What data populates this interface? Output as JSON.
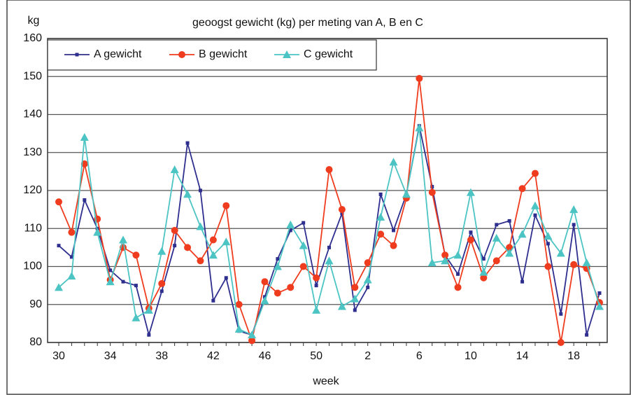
{
  "chart_data": {
    "type": "line",
    "title": "geoogst gewicht (kg) per meting van A, B en C",
    "y_label": "kg",
    "x_label": "week",
    "categories": [
      "30",
      null,
      null,
      null,
      "34",
      null,
      null,
      null,
      "38",
      null,
      null,
      null,
      "42",
      null,
      null,
      null,
      "46",
      null,
      null,
      null,
      "50",
      null,
      null,
      null,
      "2",
      null,
      null,
      null,
      "6",
      null,
      null,
      null,
      "10",
      null,
      null,
      null,
      "14",
      null,
      null,
      null,
      "18",
      null,
      null
    ],
    "series": [
      {
        "name": "A gewicht",
        "color": "#2e2e8f",
        "marker": "square",
        "values": [
          105.5,
          102.5,
          117.5,
          110,
          99,
          96,
          95,
          82,
          93.5,
          105.5,
          132.5,
          120,
          91,
          97,
          83,
          82,
          92,
          102,
          109.5,
          111.5,
          95,
          105,
          114,
          88.5,
          94.5,
          119,
          109.5,
          119,
          137,
          121,
          103,
          98,
          109,
          102,
          111,
          112,
          96,
          113.5,
          106,
          87.5,
          111,
          82,
          93
        ]
      },
      {
        "name": "B gewicht",
        "color": "#f03c1e",
        "marker": "circle",
        "values": [
          117,
          109,
          127,
          112.5,
          96.5,
          105,
          103,
          89,
          95.5,
          109.5,
          105,
          101.5,
          107,
          116,
          90,
          80.5,
          96,
          93,
          94.5,
          100,
          97,
          125.5,
          115,
          94.5,
          101,
          108.5,
          105.5,
          118,
          149.5,
          119.5,
          103,
          94.5,
          107,
          97,
          101.5,
          105,
          120.5,
          124.5,
          100,
          80,
          100.5,
          99.5,
          90.5
        ]
      },
      {
        "name": "C gewicht",
        "color": "#4cc4c4",
        "marker": "triangle",
        "values": [
          94.5,
          97.5,
          134,
          109,
          96,
          107,
          86.5,
          88.5,
          104,
          125.5,
          119,
          110.5,
          103,
          106.5,
          83.5,
          82,
          91,
          100,
          111,
          105.5,
          88.5,
          101.5,
          89.5,
          91.5,
          96.5,
          113,
          127.5,
          119,
          136.5,
          101,
          101.5,
          103,
          119.5,
          98.5,
          107.5,
          103.5,
          108.5,
          116,
          108,
          103.5,
          115,
          101,
          89.5
        ]
      }
    ],
    "ylim": [
      80,
      160
    ],
    "yticks": [
      80,
      90,
      100,
      110,
      120,
      130,
      140,
      150,
      160
    ],
    "grid": true
  }
}
